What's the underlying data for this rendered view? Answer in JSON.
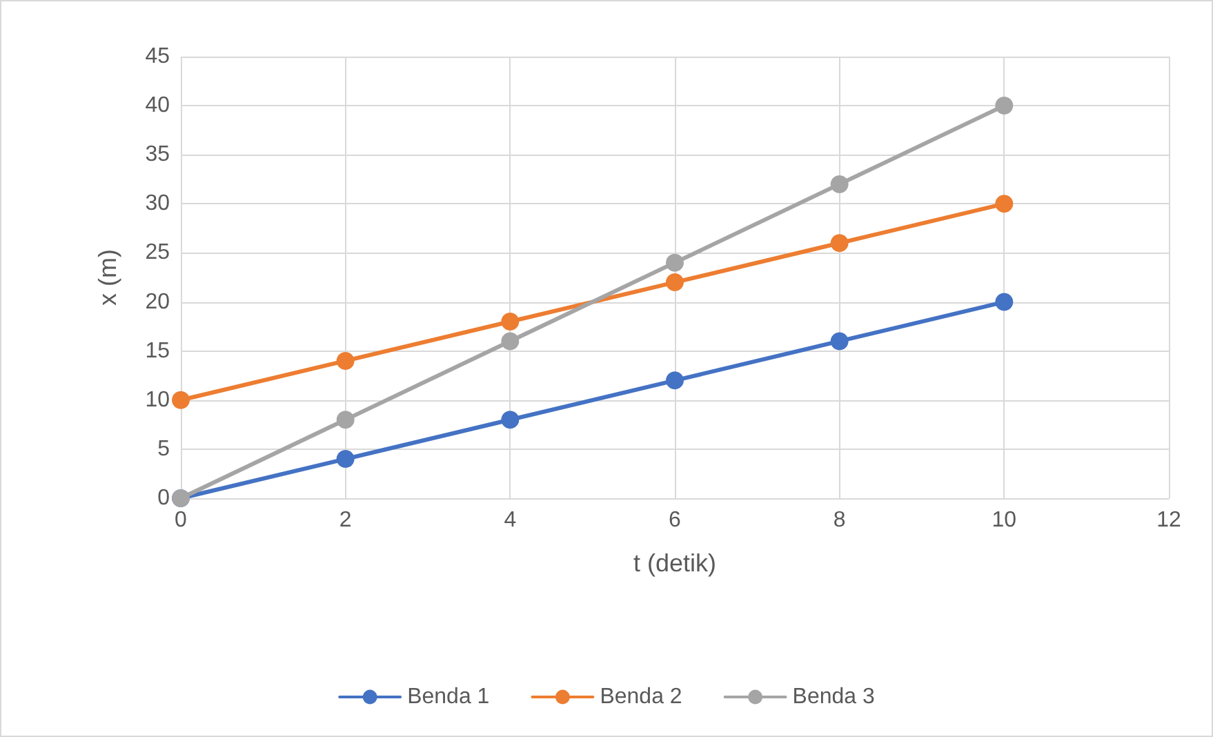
{
  "chart_data": {
    "type": "line",
    "xlabel": "t (detik)",
    "ylabel": "x (m)",
    "x": [
      0,
      2,
      4,
      6,
      8,
      10
    ],
    "series": [
      {
        "name": "Benda 1",
        "color": "#4472c4",
        "values": [
          0,
          4,
          8,
          12,
          16,
          20
        ]
      },
      {
        "name": "Benda 2",
        "color": "#ed7d31",
        "values": [
          10,
          14,
          18,
          22,
          26,
          30
        ]
      },
      {
        "name": "Benda 3",
        "color": "#a5a5a5",
        "values": [
          0,
          8,
          16,
          24,
          32,
          40
        ]
      }
    ],
    "xlim": [
      0,
      12
    ],
    "xticks": [
      0,
      2,
      4,
      6,
      8,
      10,
      12
    ],
    "ylim": [
      0,
      45
    ],
    "yticks": [
      0,
      5,
      10,
      15,
      20,
      25,
      30,
      35,
      40,
      45
    ],
    "grid": true,
    "legend": "bottom",
    "marker": "circle",
    "line_style": "solid"
  }
}
